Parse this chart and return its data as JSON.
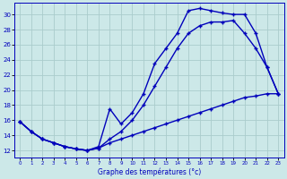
{
  "xlabel": "Graphe des températures (°c)",
  "xlim_min": -0.5,
  "xlim_max": 23.5,
  "ylim_min": 11.0,
  "ylim_max": 31.5,
  "yticks": [
    12,
    14,
    16,
    18,
    20,
    22,
    24,
    26,
    28,
    30
  ],
  "xticks": [
    0,
    1,
    2,
    3,
    4,
    5,
    6,
    7,
    8,
    9,
    10,
    11,
    12,
    13,
    14,
    15,
    16,
    17,
    18,
    19,
    20,
    21,
    22,
    23
  ],
  "bg_color": "#cce8e8",
  "line_color": "#0000bb",
  "grid_color": "#aacccc",
  "line1_x": [
    0,
    1,
    2,
    3,
    4,
    5,
    6,
    7,
    8,
    9,
    10,
    11,
    12,
    13,
    14,
    15,
    16,
    17,
    18,
    19,
    20,
    21,
    22,
    23
  ],
  "line1_y": [
    15.8,
    14.5,
    13.5,
    13.0,
    12.5,
    12.2,
    12.0,
    12.3,
    13.0,
    13.5,
    14.0,
    14.5,
    15.0,
    15.5,
    16.0,
    16.5,
    17.0,
    17.5,
    18.0,
    18.5,
    19.0,
    19.2,
    19.5,
    19.5
  ],
  "line2_x": [
    0,
    1,
    2,
    3,
    4,
    5,
    6,
    7,
    8,
    9,
    10,
    11,
    12,
    13,
    14,
    15,
    16,
    17,
    18,
    19,
    20,
    21,
    22,
    23
  ],
  "line2_y": [
    15.8,
    14.5,
    13.5,
    13.0,
    12.5,
    12.2,
    12.0,
    12.3,
    13.5,
    14.5,
    16.0,
    18.0,
    20.5,
    23.0,
    25.5,
    27.5,
    28.5,
    29.0,
    29.0,
    29.2,
    27.5,
    25.5,
    23.0,
    19.5
  ],
  "line3_x": [
    0,
    1,
    2,
    3,
    4,
    5,
    6,
    7,
    8,
    9,
    10,
    11,
    12,
    13,
    14,
    15,
    16,
    17,
    18,
    19,
    20,
    21,
    22,
    23
  ],
  "line3_y": [
    15.8,
    14.5,
    13.5,
    13.0,
    12.5,
    12.2,
    12.0,
    12.5,
    17.5,
    15.5,
    17.0,
    19.5,
    23.5,
    25.5,
    27.5,
    30.5,
    30.8,
    30.5,
    30.2,
    30.0,
    30.0,
    27.5,
    23.0,
    19.5
  ]
}
